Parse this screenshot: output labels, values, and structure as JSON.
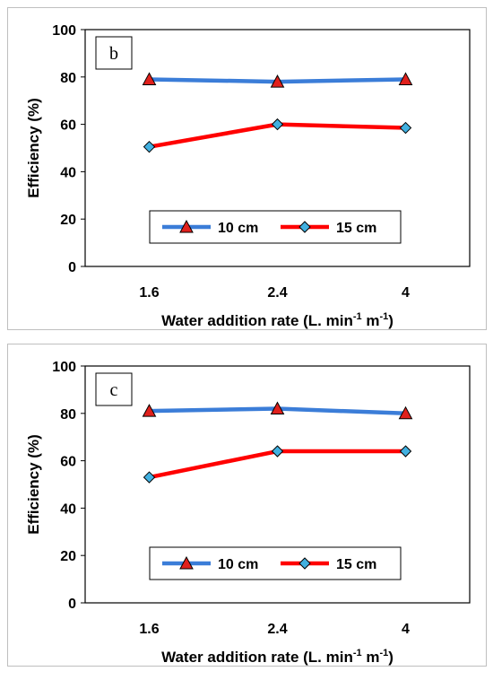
{
  "colors": {
    "series_10cm": "#3b7dd8",
    "series_15cm": "#ff0000",
    "marker_10cm": "#e0201c",
    "marker_15cm": "#41b0e0",
    "axis": "#000000",
    "frame": "#bfbfbf"
  },
  "chart_data": [
    {
      "type": "line",
      "panel_label": "b",
      "xlabel": "Water addition rate (L. min",
      "xlabel_sup1": "-1",
      "xlabel_mid": " m",
      "xlabel_sup2": "-1",
      "xlabel_end": ")",
      "ylabel": "Efficiency (%)",
      "categories": [
        "1.6",
        "2.4",
        "4"
      ],
      "ylim": [
        0,
        100
      ],
      "yticks": [
        "0",
        "20",
        "40",
        "60",
        "80",
        "100"
      ],
      "grid": false,
      "legend_position": "bottom-center",
      "series": [
        {
          "name": "10 cm",
          "values": [
            79,
            78,
            79
          ],
          "marker": "triangle"
        },
        {
          "name": "15 cm",
          "values": [
            50.5,
            60,
            58.5
          ],
          "marker": "diamond"
        }
      ]
    },
    {
      "type": "line",
      "panel_label": "c",
      "xlabel": "Water addition rate (L. min",
      "xlabel_sup1": "-1",
      "xlabel_mid": " m",
      "xlabel_sup2": "-1",
      "xlabel_end": ")",
      "ylabel": "Efficiency (%)",
      "categories": [
        "1.6",
        "2.4",
        "4"
      ],
      "ylim": [
        0,
        100
      ],
      "yticks": [
        "0",
        "20",
        "40",
        "60",
        "80",
        "100"
      ],
      "grid": false,
      "legend_position": "bottom-center",
      "series": [
        {
          "name": "10 cm",
          "values": [
            81,
            82,
            80
          ],
          "marker": "triangle"
        },
        {
          "name": "15 cm",
          "values": [
            53,
            64,
            64
          ],
          "marker": "diamond"
        }
      ]
    }
  ]
}
